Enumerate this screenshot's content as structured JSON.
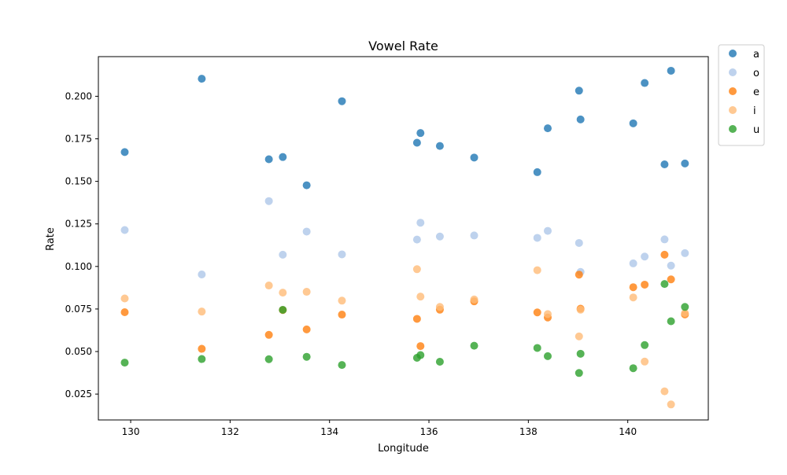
{
  "chart_data": {
    "type": "scatter",
    "title": "Vowel Rate",
    "xlabel": "Longitude",
    "ylabel": "Rate",
    "xlim": [
      129.35,
      141.62
    ],
    "ylim": [
      0.0098,
      0.2233
    ],
    "xticks": [
      130,
      132,
      134,
      136,
      138,
      140
    ],
    "xtick_labels": [
      "130",
      "132",
      "134",
      "136",
      "138",
      "140"
    ],
    "yticks": [
      0.025,
      0.05,
      0.075,
      0.1,
      0.125,
      0.15,
      0.175,
      0.2
    ],
    "ytick_labels": [
      "0.025",
      "0.050",
      "0.075",
      "0.100",
      "0.125",
      "0.150",
      "0.175",
      "0.200"
    ],
    "grid": false,
    "legend_position": "outside-top-right",
    "series": [
      {
        "name": "a",
        "color": "#1f77b4",
        "points": [
          [
            129.88,
            0.1672
          ],
          [
            131.43,
            0.2103
          ],
          [
            132.78,
            0.163
          ],
          [
            133.06,
            0.1643
          ],
          [
            133.54,
            0.1477
          ],
          [
            134.25,
            0.1971
          ],
          [
            135.76,
            0.1727
          ],
          [
            135.83,
            0.1784
          ],
          [
            136.22,
            0.1708
          ],
          [
            136.91,
            0.164
          ],
          [
            138.18,
            0.1554
          ],
          [
            138.39,
            0.1812
          ],
          [
            139.02,
            0.2033
          ],
          [
            139.05,
            0.1864
          ],
          [
            140.11,
            0.1841
          ],
          [
            140.34,
            0.2078
          ],
          [
            140.74,
            0.16
          ],
          [
            140.87,
            0.215
          ],
          [
            141.15,
            0.1605
          ]
        ]
      },
      {
        "name": "o",
        "color": "#aec7e8",
        "points": [
          [
            129.88,
            0.1214
          ],
          [
            131.43,
            0.0953
          ],
          [
            132.78,
            0.1384
          ],
          [
            133.06,
            0.1069
          ],
          [
            133.54,
            0.1205
          ],
          [
            134.25,
            0.1071
          ],
          [
            135.76,
            0.1158
          ],
          [
            135.83,
            0.1257
          ],
          [
            136.22,
            0.1176
          ],
          [
            136.91,
            0.1182
          ],
          [
            138.18,
            0.1168
          ],
          [
            138.39,
            0.1209
          ],
          [
            139.02,
            0.1138
          ],
          [
            139.05,
            0.0968
          ],
          [
            140.11,
            0.1018
          ],
          [
            140.34,
            0.1058
          ],
          [
            140.74,
            0.1159
          ],
          [
            140.87,
            0.1005
          ],
          [
            141.15,
            0.1078
          ]
        ]
      },
      {
        "name": "e",
        "color": "#ff7f0e",
        "points": [
          [
            129.88,
            0.0731
          ],
          [
            131.43,
            0.0516
          ],
          [
            132.78,
            0.0598
          ],
          [
            133.06,
            0.0744
          ],
          [
            133.54,
            0.063
          ],
          [
            134.25,
            0.0717
          ],
          [
            135.76,
            0.0692
          ],
          [
            135.83,
            0.0532
          ],
          [
            136.22,
            0.0746
          ],
          [
            136.91,
            0.0795
          ],
          [
            138.18,
            0.073
          ],
          [
            138.39,
            0.07
          ],
          [
            139.02,
            0.0952
          ],
          [
            139.05,
            0.0752
          ],
          [
            140.11,
            0.0878
          ],
          [
            140.34,
            0.0893
          ],
          [
            140.74,
            0.1069
          ],
          [
            140.87,
            0.0924
          ],
          [
            141.15,
            0.0718
          ]
        ]
      },
      {
        "name": "i",
        "color": "#ffbb78",
        "points": [
          [
            129.88,
            0.0812
          ],
          [
            131.43,
            0.0735
          ],
          [
            132.78,
            0.0888
          ],
          [
            133.06,
            0.0846
          ],
          [
            133.54,
            0.0851
          ],
          [
            134.25,
            0.0799
          ],
          [
            135.76,
            0.0984
          ],
          [
            135.83,
            0.0823
          ],
          [
            136.22,
            0.0762
          ],
          [
            136.91,
            0.0806
          ],
          [
            138.18,
            0.0978
          ],
          [
            138.39,
            0.072
          ],
          [
            139.02,
            0.0589
          ],
          [
            139.05,
            0.0746
          ],
          [
            140.11,
            0.0818
          ],
          [
            140.34,
            0.0441
          ],
          [
            140.74,
            0.0266
          ],
          [
            140.87,
            0.0189
          ],
          [
            141.15,
            0.0726
          ]
        ]
      },
      {
        "name": "u",
        "color": "#2ca02c",
        "points": [
          [
            129.88,
            0.0435
          ],
          [
            131.43,
            0.0456
          ],
          [
            132.78,
            0.0455
          ],
          [
            133.06,
            0.0745
          ],
          [
            133.54,
            0.0469
          ],
          [
            134.25,
            0.0421
          ],
          [
            135.76,
            0.0463
          ],
          [
            135.83,
            0.0479
          ],
          [
            136.22,
            0.044
          ],
          [
            136.91,
            0.0534
          ],
          [
            138.18,
            0.0521
          ],
          [
            138.39,
            0.0473
          ],
          [
            139.02,
            0.0374
          ],
          [
            139.05,
            0.0487
          ],
          [
            140.11,
            0.0402
          ],
          [
            140.34,
            0.0538
          ],
          [
            140.74,
            0.0897
          ],
          [
            140.87,
            0.0678
          ],
          [
            141.15,
            0.0762
          ]
        ]
      }
    ]
  }
}
